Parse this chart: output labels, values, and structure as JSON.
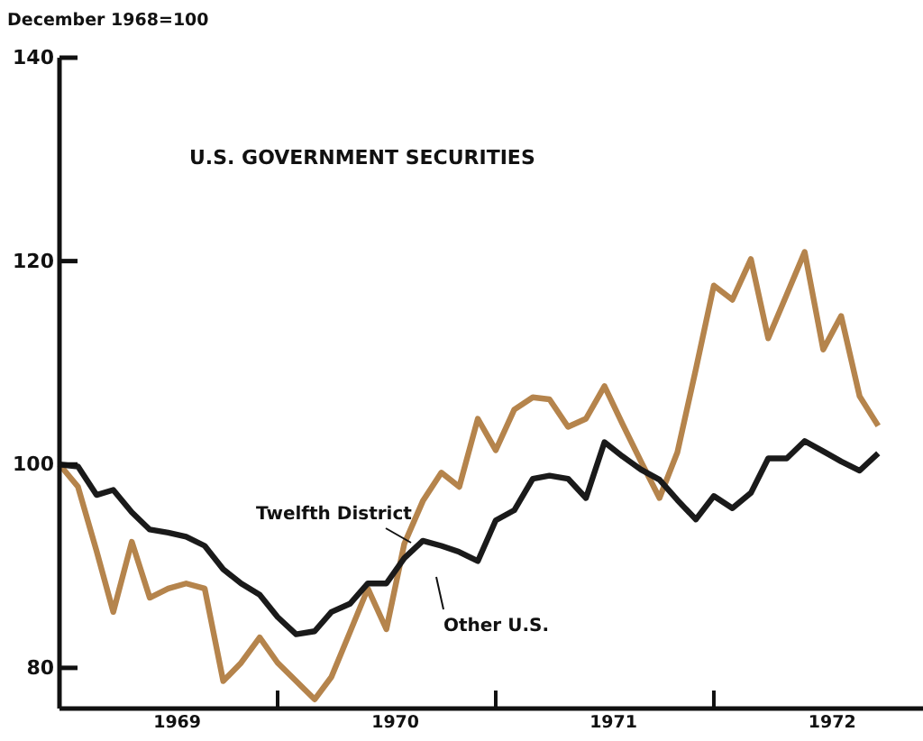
{
  "chart_data": {
    "type": "line",
    "title": "U.S. GOVERNMENT SECURITIES",
    "ylabel": "December 1968=100",
    "x": [
      "1968-12",
      "1969-01",
      "1969-02",
      "1969-03",
      "1969-04",
      "1969-05",
      "1969-06",
      "1969-07",
      "1969-08",
      "1969-09",
      "1969-10",
      "1969-11",
      "1969-12",
      "1970-01",
      "1970-02",
      "1970-03",
      "1970-04",
      "1970-05",
      "1970-06",
      "1970-07",
      "1970-08",
      "1970-09",
      "1970-10",
      "1970-11",
      "1970-12",
      "1971-01",
      "1971-02",
      "1971-03",
      "1971-04",
      "1971-05",
      "1971-06",
      "1971-07",
      "1971-08",
      "1971-09",
      "1971-10",
      "1971-11",
      "1971-12",
      "1972-01",
      "1972-02",
      "1972-03",
      "1972-04",
      "1972-05",
      "1972-06",
      "1972-07",
      "1972-08",
      "1972-09"
    ],
    "series": [
      {
        "name": "Twelfth District",
        "color": "#b5844c",
        "values": [
          100,
          97.8,
          91.5,
          85.5,
          92.4,
          86.9,
          87.8,
          88.3,
          87.8,
          78.7,
          80.5,
          83.0,
          80.5,
          78.7,
          76.9,
          79.1,
          83.5,
          87.8,
          83.8,
          92.2,
          96.4,
          99.2,
          97.8,
          104.5,
          101.4,
          105.4,
          106.6,
          106.4,
          103.7,
          104.5,
          107.7,
          104.0,
          100.3,
          96.7,
          101.2,
          109.4,
          117.6,
          116.2,
          120.2,
          112.4,
          116.7,
          120.9,
          111.3,
          114.6,
          106.7,
          103.8
        ]
      },
      {
        "name": "Other U.S.",
        "color": "#1a1a1a",
        "values": [
          100,
          99.8,
          97.0,
          97.5,
          95.3,
          93.6,
          93.3,
          92.9,
          92.0,
          89.7,
          88.3,
          87.2,
          85.0,
          83.3,
          83.6,
          85.5,
          86.3,
          88.3,
          88.3,
          90.8,
          92.5,
          92.0,
          91.4,
          90.5,
          94.5,
          95.5,
          98.6,
          98.9,
          98.6,
          96.7,
          102.2,
          100.8,
          99.5,
          98.5,
          96.5,
          94.6,
          96.9,
          95.7,
          97.2,
          100.6,
          100.6,
          102.3,
          101.3,
          100.3,
          99.4,
          101.1
        ]
      }
    ],
    "xlim": [
      "1968-12",
      "1972-11-15"
    ],
    "xticks": [
      {
        "value": "1969-06-16",
        "label": "1969"
      },
      {
        "value": "1969-12",
        "label": null
      },
      {
        "value": "1970-06-16",
        "label": "1970"
      },
      {
        "value": "1970-12",
        "label": null
      },
      {
        "value": "1971-06-16",
        "label": "1971"
      },
      {
        "value": "1971-12",
        "label": null
      },
      {
        "value": "1972-06-16",
        "label": "1972"
      }
    ],
    "ylim": [
      76,
      140
    ],
    "yticks": [
      80,
      100,
      120,
      140
    ],
    "grid": false,
    "legend": "bottom",
    "line_style": "solid",
    "marker": "none"
  }
}
